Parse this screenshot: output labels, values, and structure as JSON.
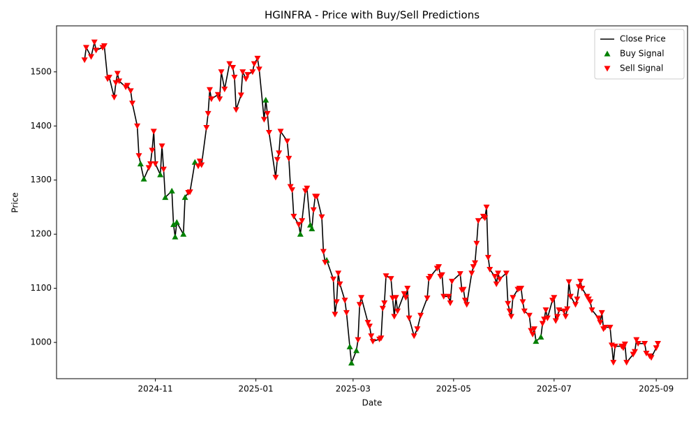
{
  "chart_data": {
    "type": "line",
    "title": "HGINFRA - Price with Buy/Sell Predictions",
    "xlabel": "Date",
    "ylabel": "Price",
    "xlim": [
      "2024-09-02",
      "2025-09-20"
    ],
    "xticks": [
      {
        "value": "2024-11-01",
        "label": "2024-11"
      },
      {
        "value": "2025-01-01",
        "label": "2025-01"
      },
      {
        "value": "2025-03-01",
        "label": "2025-03"
      },
      {
        "value": "2025-05-01",
        "label": "2025-05"
      },
      {
        "value": "2025-07-01",
        "label": "2025-07"
      },
      {
        "value": "2025-09-01",
        "label": "2025-09"
      }
    ],
    "ylim": [
      933,
      1585
    ],
    "yticks": [
      1000,
      1100,
      1200,
      1300,
      1400,
      1500
    ],
    "grid": false,
    "legend": "upper right",
    "series": [
      {
        "name": "Close Price",
        "type": "line",
        "color": "#000000",
        "x": [
          "2024-09-19",
          "2024-09-20",
          "2024-09-23",
          "2024-09-25",
          "2024-09-26",
          "2024-09-30",
          "2024-10-01",
          "2024-10-03",
          "2024-10-04",
          "2024-10-07",
          "2024-10-08",
          "2024-10-09",
          "2024-10-10",
          "2024-10-14",
          "2024-10-15",
          "2024-10-17",
          "2024-10-18",
          "2024-10-21",
          "2024-10-22",
          "2024-10-23",
          "2024-10-25",
          "2024-10-28",
          "2024-10-29",
          "2024-10-30",
          "2024-10-31",
          "2024-11-01",
          "2024-11-04",
          "2024-11-05",
          "2024-11-06",
          "2024-11-07",
          "2024-11-11",
          "2024-11-12",
          "2024-11-13",
          "2024-11-14",
          "2024-11-18",
          "2024-11-19",
          "2024-11-21",
          "2024-11-22",
          "2024-11-25",
          "2024-11-27",
          "2024-11-28",
          "2024-11-29",
          "2024-12-02",
          "2024-12-03",
          "2024-12-04",
          "2024-12-05",
          "2024-12-09",
          "2024-12-10",
          "2024-12-11",
          "2024-12-13",
          "2024-12-16",
          "2024-12-18",
          "2024-12-19",
          "2024-12-20",
          "2024-12-23",
          "2024-12-24",
          "2024-12-26",
          "2024-12-27",
          "2024-12-30",
          "2024-12-31",
          "2025-01-02",
          "2025-01-03",
          "2025-01-06",
          "2025-01-07",
          "2025-01-08",
          "2025-01-09",
          "2025-01-13",
          "2025-01-14",
          "2025-01-15",
          "2025-01-16",
          "2025-01-20",
          "2025-01-21",
          "2025-01-22",
          "2025-01-23",
          "2025-01-24",
          "2025-01-27",
          "2025-01-28",
          "2025-01-29",
          "2025-01-31",
          "2025-02-01",
          "2025-02-03",
          "2025-02-04",
          "2025-02-05",
          "2025-02-06",
          "2025-02-07",
          "2025-02-10",
          "2025-02-11",
          "2025-02-12",
          "2025-02-13",
          "2025-02-17",
          "2025-02-18",
          "2025-02-19",
          "2025-02-20",
          "2025-02-21",
          "2025-02-24",
          "2025-02-25",
          "2025-02-27",
          "2025-02-28",
          "2025-03-03",
          "2025-03-04",
          "2025-03-05",
          "2025-03-06",
          "2025-03-10",
          "2025-03-11",
          "2025-03-12",
          "2025-03-13",
          "2025-03-17",
          "2025-03-18",
          "2025-03-19",
          "2025-03-20",
          "2025-03-21",
          "2025-03-24",
          "2025-03-25",
          "2025-03-26",
          "2025-03-27",
          "2025-03-28",
          "2025-04-01",
          "2025-04-02",
          "2025-04-03",
          "2025-04-04",
          "2025-04-07",
          "2025-04-09",
          "2025-04-11",
          "2025-04-15",
          "2025-04-16",
          "2025-04-17",
          "2025-04-21",
          "2025-04-22",
          "2025-04-23",
          "2025-04-24",
          "2025-04-25",
          "2025-04-28",
          "2025-04-29",
          "2025-04-30",
          "2025-05-05",
          "2025-05-06",
          "2025-05-07",
          "2025-05-08",
          "2025-05-09",
          "2025-05-12",
          "2025-05-13",
          "2025-05-14",
          "2025-05-15",
          "2025-05-16",
          "2025-05-19",
          "2025-05-20",
          "2025-05-21",
          "2025-05-22",
          "2025-05-23",
          "2025-05-26",
          "2025-05-27",
          "2025-05-28",
          "2025-05-29",
          "2025-06-02",
          "2025-06-03",
          "2025-06-04",
          "2025-06-05",
          "2025-06-06",
          "2025-06-09",
          "2025-06-10",
          "2025-06-11",
          "2025-06-12",
          "2025-06-13",
          "2025-06-16",
          "2025-06-17",
          "2025-06-18",
          "2025-06-19",
          "2025-06-20",
          "2025-06-23",
          "2025-06-24",
          "2025-06-25",
          "2025-06-26",
          "2025-06-27",
          "2025-06-30",
          "2025-07-01",
          "2025-07-02",
          "2025-07-03",
          "2025-07-04",
          "2025-07-07",
          "2025-07-08",
          "2025-07-09",
          "2025-07-10",
          "2025-07-11",
          "2025-07-14",
          "2025-07-15",
          "2025-07-16",
          "2025-07-17",
          "2025-07-18",
          "2025-07-21",
          "2025-07-22",
          "2025-07-23",
          "2025-07-24",
          "2025-07-28",
          "2025-07-29",
          "2025-07-30",
          "2025-07-31",
          "2025-08-01",
          "2025-08-04",
          "2025-08-05",
          "2025-08-06",
          "2025-08-07",
          "2025-08-11",
          "2025-08-12",
          "2025-08-13",
          "2025-08-14",
          "2025-08-18",
          "2025-08-19",
          "2025-08-20",
          "2025-08-21",
          "2025-08-25",
          "2025-08-26",
          "2025-08-28",
          "2025-08-29",
          "2025-09-01",
          "2025-09-02"
        ],
        "values": [
          1522,
          1545,
          1528,
          1555,
          1540,
          1545,
          1548,
          1487,
          1490,
          1453,
          1480,
          1497,
          1483,
          1472,
          1475,
          1465,
          1442,
          1400,
          1345,
          1330,
          1302,
          1323,
          1330,
          1355,
          1390,
          1330,
          1310,
          1363,
          1320,
          1268,
          1280,
          1218,
          1195,
          1222,
          1200,
          1268,
          1277,
          1278,
          1333,
          1326,
          1335,
          1328,
          1397,
          1423,
          1467,
          1450,
          1458,
          1450,
          1500,
          1468,
          1515,
          1508,
          1490,
          1430,
          1457,
          1500,
          1487,
          1495,
          1500,
          1515,
          1525,
          1505,
          1412,
          1448,
          1423,
          1388,
          1305,
          1338,
          1350,
          1390,
          1372,
          1340,
          1288,
          1282,
          1233,
          1218,
          1200,
          1225,
          1280,
          1285,
          1217,
          1210,
          1245,
          1270,
          1270,
          1232,
          1168,
          1148,
          1152,
          1117,
          1052,
          1075,
          1128,
          1108,
          1078,
          1055,
          992,
          962,
          985,
          1005,
          1070,
          1083,
          1037,
          1030,
          1012,
          1002,
          1006,
          1008,
          1063,
          1073,
          1123,
          1118,
          1082,
          1048,
          1083,
          1058,
          1090,
          1083,
          1100,
          1045,
          1012,
          1025,
          1050,
          1082,
          1118,
          1122,
          1137,
          1140,
          1122,
          1125,
          1085,
          1085,
          1073,
          1113,
          1127,
          1097,
          1098,
          1078,
          1070,
          1128,
          1140,
          1147,
          1183,
          1225,
          1233,
          1230,
          1250,
          1157,
          1135,
          1122,
          1108,
          1128,
          1117,
          1128,
          1072,
          1058,
          1048,
          1083,
          1098,
          1100,
          1100,
          1075,
          1058,
          1050,
          1022,
          1015,
          1025,
          1002,
          1010,
          1035,
          1043,
          1060,
          1045,
          1078,
          1083,
          1040,
          1048,
          1060,
          1058,
          1048,
          1062,
          1112,
          1085,
          1070,
          1080,
          1103,
          1113,
          1100,
          1085,
          1080,
          1075,
          1060,
          1045,
          1037,
          1055,
          1025,
          1028,
          1028,
          995,
          963,
          993,
          993,
          990,
          997,
          963,
          978,
          983,
          1005,
          998,
          998,
          980,
          975,
          972,
          990,
          998
        ]
      },
      {
        "name": "Buy Signal",
        "type": "scatter",
        "marker": "triangle-up",
        "color": "#008000",
        "x": [
          "2024-10-23",
          "2024-10-25",
          "2024-11-04",
          "2024-11-07",
          "2024-11-11",
          "2024-11-12",
          "2024-11-13",
          "2024-11-14",
          "2024-11-18",
          "2024-11-19",
          "2024-11-25",
          "2025-01-07",
          "2025-01-28",
          "2025-02-03",
          "2025-02-04",
          "2025-02-13",
          "2025-02-27",
          "2025-02-28",
          "2025-03-03",
          "2025-06-20",
          "2025-06-23"
        ],
        "values": [
          1330,
          1302,
          1310,
          1268,
          1280,
          1218,
          1195,
          1222,
          1200,
          1268,
          1333,
          1448,
          1200,
          1217,
          1210,
          1152,
          992,
          962,
          985,
          1002,
          1010
        ]
      },
      {
        "name": "Sell Signal",
        "type": "scatter",
        "marker": "triangle-down",
        "color": "#ff0000",
        "x": [
          "2024-09-19",
          "2024-09-20",
          "2024-09-23",
          "2024-09-25",
          "2024-09-26",
          "2024-09-30",
          "2024-10-01",
          "2024-10-03",
          "2024-10-04",
          "2024-10-07",
          "2024-10-08",
          "2024-10-09",
          "2024-10-10",
          "2024-10-14",
          "2024-10-15",
          "2024-10-17",
          "2024-10-18",
          "2024-10-21",
          "2024-10-22",
          "2024-10-28",
          "2024-10-29",
          "2024-10-30",
          "2024-10-31",
          "2024-11-01",
          "2024-11-05",
          "2024-11-06",
          "2024-11-21",
          "2024-11-22",
          "2024-11-27",
          "2024-11-28",
          "2024-11-29",
          "2024-12-02",
          "2024-12-03",
          "2024-12-04",
          "2024-12-05",
          "2024-12-09",
          "2024-12-10",
          "2024-12-11",
          "2024-12-13",
          "2024-12-16",
          "2024-12-18",
          "2024-12-19",
          "2024-12-20",
          "2024-12-23",
          "2024-12-24",
          "2024-12-26",
          "2024-12-27",
          "2024-12-30",
          "2024-12-31",
          "2025-01-02",
          "2025-01-03",
          "2025-01-06",
          "2025-01-08",
          "2025-01-09",
          "2025-01-13",
          "2025-01-14",
          "2025-01-15",
          "2025-01-16",
          "2025-01-20",
          "2025-01-21",
          "2025-01-22",
          "2025-01-23",
          "2025-01-24",
          "2025-01-27",
          "2025-01-29",
          "2025-01-31",
          "2025-02-01",
          "2025-02-05",
          "2025-02-06",
          "2025-02-07",
          "2025-02-10",
          "2025-02-11",
          "2025-02-12",
          "2025-02-17",
          "2025-02-18",
          "2025-02-19",
          "2025-02-20",
          "2025-02-21",
          "2025-02-24",
          "2025-02-25",
          "2025-03-04",
          "2025-03-05",
          "2025-03-06",
          "2025-03-10",
          "2025-03-11",
          "2025-03-12",
          "2025-03-13",
          "2025-03-17",
          "2025-03-18",
          "2025-03-19",
          "2025-03-20",
          "2025-03-21",
          "2025-03-24",
          "2025-03-25",
          "2025-03-26",
          "2025-03-27",
          "2025-03-28",
          "2025-04-01",
          "2025-04-02",
          "2025-04-03",
          "2025-04-04",
          "2025-04-07",
          "2025-04-09",
          "2025-04-11",
          "2025-04-15",
          "2025-04-16",
          "2025-04-17",
          "2025-04-21",
          "2025-04-22",
          "2025-04-23",
          "2025-04-24",
          "2025-04-25",
          "2025-04-28",
          "2025-04-29",
          "2025-04-30",
          "2025-05-05",
          "2025-05-06",
          "2025-05-07",
          "2025-05-08",
          "2025-05-09",
          "2025-05-12",
          "2025-05-13",
          "2025-05-14",
          "2025-05-15",
          "2025-05-16",
          "2025-05-19",
          "2025-05-20",
          "2025-05-21",
          "2025-05-22",
          "2025-05-23",
          "2025-05-26",
          "2025-05-27",
          "2025-05-28",
          "2025-05-29",
          "2025-06-02",
          "2025-06-03",
          "2025-06-04",
          "2025-06-05",
          "2025-06-06",
          "2025-06-09",
          "2025-06-10",
          "2025-06-11",
          "2025-06-12",
          "2025-06-13",
          "2025-06-16",
          "2025-06-17",
          "2025-06-18",
          "2025-06-19",
          "2025-06-24",
          "2025-06-25",
          "2025-06-26",
          "2025-06-27",
          "2025-06-30",
          "2025-07-01",
          "2025-07-02",
          "2025-07-03",
          "2025-07-04",
          "2025-07-07",
          "2025-07-08",
          "2025-07-09",
          "2025-07-10",
          "2025-07-11",
          "2025-07-14",
          "2025-07-15",
          "2025-07-16",
          "2025-07-17",
          "2025-07-18",
          "2025-07-21",
          "2025-07-22",
          "2025-07-23",
          "2025-07-24",
          "2025-07-28",
          "2025-07-29",
          "2025-07-30",
          "2025-07-31",
          "2025-08-01",
          "2025-08-04",
          "2025-08-05",
          "2025-08-06",
          "2025-08-07",
          "2025-08-11",
          "2025-08-12",
          "2025-08-13",
          "2025-08-14",
          "2025-08-18",
          "2025-08-19",
          "2025-08-20",
          "2025-08-21",
          "2025-08-25",
          "2025-08-26",
          "2025-08-28",
          "2025-08-29",
          "2025-09-01",
          "2025-09-02"
        ],
        "values": [
          1522,
          1545,
          1528,
          1555,
          1540,
          1545,
          1548,
          1487,
          1490,
          1453,
          1480,
          1497,
          1483,
          1472,
          1475,
          1465,
          1442,
          1400,
          1345,
          1323,
          1330,
          1355,
          1390,
          1330,
          1363,
          1320,
          1277,
          1278,
          1326,
          1335,
          1328,
          1397,
          1423,
          1467,
          1450,
          1458,
          1450,
          1500,
          1468,
          1515,
          1508,
          1490,
          1430,
          1457,
          1500,
          1487,
          1495,
          1500,
          1515,
          1525,
          1505,
          1412,
          1423,
          1388,
          1305,
          1338,
          1350,
          1390,
          1372,
          1340,
          1288,
          1282,
          1233,
          1218,
          1225,
          1280,
          1285,
          1245,
          1270,
          1270,
          1232,
          1168,
          1148,
          1117,
          1052,
          1075,
          1128,
          1108,
          1078,
          1055,
          1005,
          1070,
          1083,
          1037,
          1030,
          1012,
          1002,
          1006,
          1008,
          1063,
          1073,
          1123,
          1118,
          1082,
          1048,
          1083,
          1058,
          1090,
          1083,
          1100,
          1045,
          1012,
          1025,
          1050,
          1082,
          1118,
          1122,
          1137,
          1140,
          1122,
          1125,
          1085,
          1085,
          1073,
          1113,
          1127,
          1097,
          1098,
          1078,
          1070,
          1128,
          1140,
          1147,
          1183,
          1225,
          1233,
          1230,
          1250,
          1157,
          1135,
          1122,
          1108,
          1128,
          1117,
          1128,
          1072,
          1058,
          1048,
          1083,
          1098,
          1100,
          1100,
          1075,
          1058,
          1050,
          1022,
          1015,
          1025,
          1035,
          1043,
          1060,
          1045,
          1078,
          1083,
          1040,
          1048,
          1060,
          1058,
          1048,
          1062,
          1112,
          1085,
          1070,
          1080,
          1103,
          1113,
          1100,
          1085,
          1080,
          1075,
          1060,
          1045,
          1037,
          1055,
          1025,
          1028,
          1028,
          995,
          963,
          993,
          993,
          990,
          997,
          963,
          978,
          983,
          1005,
          998,
          998,
          980,
          975,
          972,
          990,
          998
        ]
      }
    ]
  }
}
